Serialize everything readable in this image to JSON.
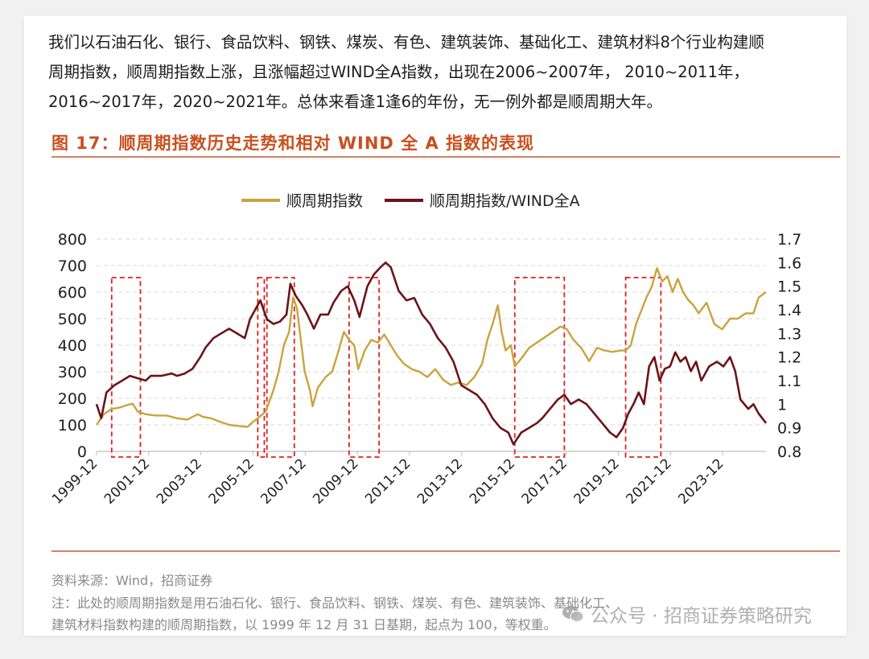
{
  "article": {
    "lines": [
      "我们以石油石化、银行、食品饮料、钢铁、煤炭、有色、建筑装饰、基础化工、建筑材料8个行业构建顺",
      "周期指数，顺周期指数上涨，且涨幅超过WIND全A指数，出现在2006~2007年， 2010~2011年，",
      "2016~2017年，2020~2021年。总体来看逢1逢6的年份，无一例外都是顺周期大年。"
    ]
  },
  "figure": {
    "title": "图 17：顺周期指数历史走势和相对 WIND 全 A 指数的表现",
    "source": "资料来源：Wind，招商证券",
    "note_lines": [
      "注：此处的顺周期指数是用石油石化、银行、食品饮料、钢铁、煤炭、有色、建筑装饰、基础化工、",
      "建筑材料指数构建的顺周期指数，以 1999 年 12 月 31 日基期，起点为 100，等权重。"
    ]
  },
  "watermark": {
    "text": "公众号 · 招商证券策略研究",
    "icon": "wechat-icon"
  },
  "chart_data": {
    "type": "line",
    "legend_position": "top",
    "grid": "horizontal-dashed",
    "x_tick_labels": [
      "1999-12",
      "2001-12",
      "2003-12",
      "2005-12",
      "2007-12",
      "2009-12",
      "2011-12",
      "2013-12",
      "2015-12",
      "2017-12",
      "2019-12",
      "2021-12",
      "2023-12"
    ],
    "x_range": [
      1999.92,
      2025.58
    ],
    "y_left": {
      "ticks": [
        0,
        100,
        200,
        300,
        400,
        500,
        600,
        700,
        800
      ],
      "range": [
        0,
        800
      ]
    },
    "y_right": {
      "ticks": [
        "0.8",
        "0.9",
        "1",
        "1.1",
        "1.2",
        "1.3",
        "1.4",
        "1.5",
        "1.6",
        "1.7"
      ],
      "range": [
        0.8,
        1.7
      ]
    },
    "series": [
      {
        "name": "顺周期指数",
        "axis": "left",
        "color": "#c9a33d",
        "points": [
          [
            1999.92,
            100
          ],
          [
            2000.2,
            140
          ],
          [
            2000.5,
            160
          ],
          [
            2000.8,
            165
          ],
          [
            2001.1,
            175
          ],
          [
            2001.3,
            180
          ],
          [
            2001.5,
            150
          ],
          [
            2001.8,
            140
          ],
          [
            2002.2,
            135
          ],
          [
            2002.6,
            135
          ],
          [
            2003.0,
            125
          ],
          [
            2003.4,
            120
          ],
          [
            2003.8,
            140
          ],
          [
            2004.0,
            130
          ],
          [
            2004.3,
            125
          ],
          [
            2004.7,
            110
          ],
          [
            2005.0,
            100
          ],
          [
            2005.4,
            95
          ],
          [
            2005.7,
            92
          ],
          [
            2005.9,
            110
          ],
          [
            2006.1,
            125
          ],
          [
            2006.4,
            150
          ],
          [
            2006.7,
            230
          ],
          [
            2006.9,
            300
          ],
          [
            2007.1,
            400
          ],
          [
            2007.3,
            450
          ],
          [
            2007.45,
            580
          ],
          [
            2007.6,
            540
          ],
          [
            2007.75,
            420
          ],
          [
            2007.9,
            300
          ],
          [
            2008.1,
            230
          ],
          [
            2008.2,
            170
          ],
          [
            2008.4,
            240
          ],
          [
            2008.7,
            280
          ],
          [
            2008.95,
            300
          ],
          [
            2009.2,
            380
          ],
          [
            2009.4,
            450
          ],
          [
            2009.6,
            420
          ],
          [
            2009.8,
            400
          ],
          [
            2009.95,
            310
          ],
          [
            2010.2,
            380
          ],
          [
            2010.45,
            420
          ],
          [
            2010.7,
            410
          ],
          [
            2010.95,
            440
          ],
          [
            2011.2,
            400
          ],
          [
            2011.45,
            360
          ],
          [
            2011.7,
            330
          ],
          [
            2012.0,
            310
          ],
          [
            2012.3,
            300
          ],
          [
            2012.6,
            280
          ],
          [
            2012.9,
            310
          ],
          [
            2013.2,
            270
          ],
          [
            2013.5,
            250
          ],
          [
            2013.8,
            260
          ],
          [
            2014.1,
            250
          ],
          [
            2014.4,
            280
          ],
          [
            2014.7,
            330
          ],
          [
            2014.9,
            420
          ],
          [
            2015.1,
            480
          ],
          [
            2015.3,
            550
          ],
          [
            2015.45,
            450
          ],
          [
            2015.6,
            380
          ],
          [
            2015.8,
            400
          ],
          [
            2015.95,
            320
          ],
          [
            2016.2,
            350
          ],
          [
            2016.5,
            390
          ],
          [
            2016.8,
            410
          ],
          [
            2017.1,
            430
          ],
          [
            2017.4,
            450
          ],
          [
            2017.7,
            470
          ],
          [
            2017.95,
            460
          ],
          [
            2018.2,
            420
          ],
          [
            2018.5,
            390
          ],
          [
            2018.8,
            340
          ],
          [
            2019.1,
            390
          ],
          [
            2019.4,
            380
          ],
          [
            2019.7,
            375
          ],
          [
            2020.0,
            380
          ],
          [
            2020.2,
            380
          ],
          [
            2020.4,
            400
          ],
          [
            2020.6,
            480
          ],
          [
            2020.8,
            530
          ],
          [
            2021.0,
            580
          ],
          [
            2021.2,
            620
          ],
          [
            2021.4,
            690
          ],
          [
            2021.6,
            640
          ],
          [
            2021.8,
            660
          ],
          [
            2022.0,
            600
          ],
          [
            2022.2,
            650
          ],
          [
            2022.4,
            600
          ],
          [
            2022.6,
            570
          ],
          [
            2022.8,
            550
          ],
          [
            2023.0,
            520
          ],
          [
            2023.3,
            560
          ],
          [
            2023.6,
            480
          ],
          [
            2023.9,
            460
          ],
          [
            2024.2,
            500
          ],
          [
            2024.5,
            500
          ],
          [
            2024.8,
            520
          ],
          [
            2025.1,
            520
          ],
          [
            2025.3,
            580
          ],
          [
            2025.58,
            600
          ]
        ]
      },
      {
        "name": "顺周期指数/WIND全A",
        "axis": "right",
        "color": "#6b1419",
        "points": [
          [
            1999.92,
            1.0
          ],
          [
            2000.1,
            0.94
          ],
          [
            2000.3,
            1.05
          ],
          [
            2000.6,
            1.08
          ],
          [
            2000.9,
            1.1
          ],
          [
            2001.2,
            1.12
          ],
          [
            2001.5,
            1.11
          ],
          [
            2001.8,
            1.1
          ],
          [
            2002.0,
            1.12
          ],
          [
            2002.4,
            1.12
          ],
          [
            2002.8,
            1.13
          ],
          [
            2003.0,
            1.12
          ],
          [
            2003.3,
            1.13
          ],
          [
            2003.6,
            1.15
          ],
          [
            2003.9,
            1.2
          ],
          [
            2004.1,
            1.24
          ],
          [
            2004.4,
            1.28
          ],
          [
            2004.7,
            1.3
          ],
          [
            2005.0,
            1.32
          ],
          [
            2005.3,
            1.3
          ],
          [
            2005.6,
            1.28
          ],
          [
            2005.8,
            1.36
          ],
          [
            2006.0,
            1.4
          ],
          [
            2006.2,
            1.44
          ],
          [
            2006.45,
            1.36
          ],
          [
            2006.7,
            1.34
          ],
          [
            2006.95,
            1.35
          ],
          [
            2007.2,
            1.38
          ],
          [
            2007.35,
            1.51
          ],
          [
            2007.55,
            1.46
          ],
          [
            2007.8,
            1.42
          ],
          [
            2008.0,
            1.38
          ],
          [
            2008.25,
            1.32
          ],
          [
            2008.5,
            1.38
          ],
          [
            2008.8,
            1.38
          ],
          [
            2009.0,
            1.43
          ],
          [
            2009.3,
            1.48
          ],
          [
            2009.55,
            1.5
          ],
          [
            2009.8,
            1.44
          ],
          [
            2010.0,
            1.37
          ],
          [
            2010.3,
            1.5
          ],
          [
            2010.55,
            1.55
          ],
          [
            2010.8,
            1.58
          ],
          [
            2011.0,
            1.6
          ],
          [
            2011.2,
            1.58
          ],
          [
            2011.5,
            1.48
          ],
          [
            2011.8,
            1.44
          ],
          [
            2012.1,
            1.45
          ],
          [
            2012.4,
            1.38
          ],
          [
            2012.7,
            1.34
          ],
          [
            2013.0,
            1.28
          ],
          [
            2013.3,
            1.24
          ],
          [
            2013.6,
            1.18
          ],
          [
            2013.9,
            1.08
          ],
          [
            2014.2,
            1.06
          ],
          [
            2014.5,
            1.04
          ],
          [
            2014.8,
            1.0
          ],
          [
            2015.1,
            0.94
          ],
          [
            2015.4,
            0.9
          ],
          [
            2015.7,
            0.88
          ],
          [
            2015.9,
            0.83
          ],
          [
            2016.2,
            0.88
          ],
          [
            2016.5,
            0.9
          ],
          [
            2016.8,
            0.92
          ],
          [
            2017.0,
            0.94
          ],
          [
            2017.3,
            0.98
          ],
          [
            2017.6,
            1.02
          ],
          [
            2017.85,
            1.04
          ],
          [
            2018.1,
            1.0
          ],
          [
            2018.4,
            1.02
          ],
          [
            2018.7,
            1.0
          ],
          [
            2019.0,
            0.96
          ],
          [
            2019.3,
            0.92
          ],
          [
            2019.6,
            0.88
          ],
          [
            2019.85,
            0.86
          ],
          [
            2020.1,
            0.9
          ],
          [
            2020.3,
            0.96
          ],
          [
            2020.5,
            1.0
          ],
          [
            2020.7,
            1.05
          ],
          [
            2020.9,
            1.0
          ],
          [
            2021.1,
            1.16
          ],
          [
            2021.3,
            1.2
          ],
          [
            2021.5,
            1.1
          ],
          [
            2021.7,
            1.15
          ],
          [
            2021.9,
            1.16
          ],
          [
            2022.1,
            1.22
          ],
          [
            2022.3,
            1.18
          ],
          [
            2022.5,
            1.2
          ],
          [
            2022.7,
            1.14
          ],
          [
            2022.9,
            1.18
          ],
          [
            2023.1,
            1.1
          ],
          [
            2023.4,
            1.16
          ],
          [
            2023.7,
            1.18
          ],
          [
            2023.95,
            1.16
          ],
          [
            2024.2,
            1.2
          ],
          [
            2024.4,
            1.14
          ],
          [
            2024.6,
            1.02
          ],
          [
            2024.9,
            0.98
          ],
          [
            2025.1,
            1.0
          ],
          [
            2025.3,
            0.96
          ],
          [
            2025.58,
            0.92
          ]
        ]
      }
    ],
    "highlight_periods": [
      {
        "label": "",
        "from": 2000.5,
        "to": 2001.6
      },
      {
        "label": "",
        "from": 2006.1,
        "to": 2006.35
      },
      {
        "label": "",
        "from": 2006.45,
        "to": 2007.5
      },
      {
        "label": "",
        "from": 2009.6,
        "to": 2010.75
      },
      {
        "label": "",
        "from": 2015.95,
        "to": 2017.85
      },
      {
        "label": "",
        "from": 2020.2,
        "to": 2021.55
      }
    ]
  }
}
